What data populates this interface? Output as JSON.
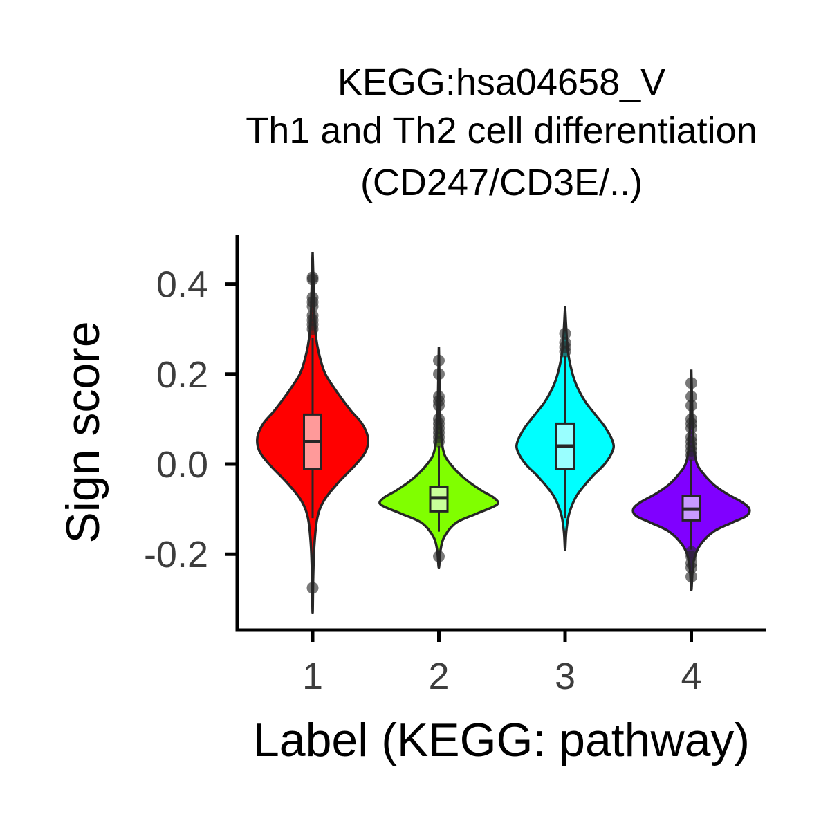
{
  "chart_data": {
    "type": "violin",
    "title_lines": [
      "KEGG:hsa04658_V",
      "Th1 and Th2 cell differentiation",
      "(CD247/CD3E/..)"
    ],
    "xlabel": "Label (KEGG: pathway)",
    "ylabel": "Sign score",
    "ylim": [
      -0.36,
      0.5
    ],
    "yticks": [
      {
        "value": 0.4,
        "label": "0.4"
      },
      {
        "value": 0.2,
        "label": "0.2"
      },
      {
        "value": 0.0,
        "label": "0.0"
      },
      {
        "value": -0.2,
        "label": "-0.2"
      }
    ],
    "categories": [
      "1",
      "2",
      "3",
      "4"
    ],
    "grid": false,
    "legend": "none",
    "series": [
      {
        "category": "1",
        "color": "#ff0000",
        "box_fill": "#ff9a9a",
        "whisker_low": -0.12,
        "q1": -0.01,
        "median": 0.05,
        "q3": 0.11,
        "whisker_high": 0.28,
        "violin_min": -0.33,
        "violin_max": 0.47,
        "violin_shape": [
          [
            -0.33,
            0.0
          ],
          [
            -0.25,
            0.01
          ],
          [
            -0.18,
            0.03
          ],
          [
            -0.12,
            0.08
          ],
          [
            -0.08,
            0.2
          ],
          [
            -0.04,
            0.45
          ],
          [
            0.0,
            0.75
          ],
          [
            0.03,
            0.92
          ],
          [
            0.06,
            0.95
          ],
          [
            0.09,
            0.85
          ],
          [
            0.12,
            0.65
          ],
          [
            0.16,
            0.42
          ],
          [
            0.2,
            0.22
          ],
          [
            0.24,
            0.12
          ],
          [
            0.28,
            0.06
          ],
          [
            0.33,
            0.03
          ],
          [
            0.4,
            0.015
          ],
          [
            0.47,
            0.0
          ]
        ],
        "outliers": [
          -0.275,
          0.3,
          0.31,
          0.32,
          0.33,
          0.35,
          0.36,
          0.37,
          0.41,
          0.415
        ]
      },
      {
        "category": "2",
        "color": "#80ff00",
        "box_fill": "#c8ff9a",
        "whisker_low": -0.15,
        "q1": -0.105,
        "median": -0.075,
        "q3": -0.05,
        "whisker_high": 0.04,
        "violin_min": -0.23,
        "violin_max": 0.26,
        "violin_shape": [
          [
            -0.23,
            0.0
          ],
          [
            -0.19,
            0.03
          ],
          [
            -0.16,
            0.1
          ],
          [
            -0.13,
            0.3
          ],
          [
            -0.11,
            0.65
          ],
          [
            -0.09,
            1.0
          ],
          [
            -0.075,
            0.95
          ],
          [
            -0.06,
            0.75
          ],
          [
            -0.04,
            0.52
          ],
          [
            -0.02,
            0.34
          ],
          [
            0.0,
            0.2
          ],
          [
            0.02,
            0.1
          ],
          [
            0.05,
            0.05
          ],
          [
            0.1,
            0.025
          ],
          [
            0.17,
            0.012
          ],
          [
            0.26,
            0.0
          ]
        ],
        "outliers": [
          -0.205,
          0.05,
          0.06,
          0.07,
          0.08,
          0.09,
          0.1,
          0.13,
          0.14,
          0.15,
          0.2,
          0.23
        ]
      },
      {
        "category": "3",
        "color": "#00ffff",
        "box_fill": "#9affff",
        "whisker_low": -0.12,
        "q1": -0.01,
        "median": 0.04,
        "q3": 0.09,
        "whisker_high": 0.24,
        "violin_min": -0.19,
        "violin_max": 0.35,
        "violin_shape": [
          [
            -0.19,
            0.0
          ],
          [
            -0.15,
            0.02
          ],
          [
            -0.11,
            0.07
          ],
          [
            -0.07,
            0.2
          ],
          [
            -0.03,
            0.45
          ],
          [
            0.0,
            0.68
          ],
          [
            0.03,
            0.82
          ],
          [
            0.05,
            0.82
          ],
          [
            0.08,
            0.7
          ],
          [
            0.11,
            0.52
          ],
          [
            0.14,
            0.34
          ],
          [
            0.18,
            0.18
          ],
          [
            0.22,
            0.09
          ],
          [
            0.26,
            0.04
          ],
          [
            0.3,
            0.02
          ],
          [
            0.35,
            0.0
          ]
        ],
        "outliers": [
          0.25,
          0.26,
          0.27,
          0.29
        ]
      },
      {
        "category": "4",
        "color": "#8000ff",
        "box_fill": "#c89aff",
        "whisker_low": -0.19,
        "q1": -0.125,
        "median": -0.1,
        "q3": -0.07,
        "whisker_high": 0.01,
        "violin_min": -0.28,
        "violin_max": 0.21,
        "violin_shape": [
          [
            -0.28,
            0.0
          ],
          [
            -0.24,
            0.02
          ],
          [
            -0.21,
            0.05
          ],
          [
            -0.18,
            0.15
          ],
          [
            -0.15,
            0.38
          ],
          [
            -0.13,
            0.7
          ],
          [
            -0.115,
            0.95
          ],
          [
            -0.1,
            1.0
          ],
          [
            -0.085,
            0.88
          ],
          [
            -0.065,
            0.6
          ],
          [
            -0.045,
            0.38
          ],
          [
            -0.02,
            0.2
          ],
          [
            0.0,
            0.1
          ],
          [
            0.03,
            0.05
          ],
          [
            0.08,
            0.025
          ],
          [
            0.14,
            0.012
          ],
          [
            0.21,
            0.0
          ]
        ],
        "outliers": [
          -0.25,
          -0.23,
          -0.22,
          -0.205,
          -0.195,
          0.02,
          0.03,
          0.04,
          0.05,
          0.06,
          0.08,
          0.09,
          0.1,
          0.13,
          0.15,
          0.18
        ]
      }
    ]
  }
}
